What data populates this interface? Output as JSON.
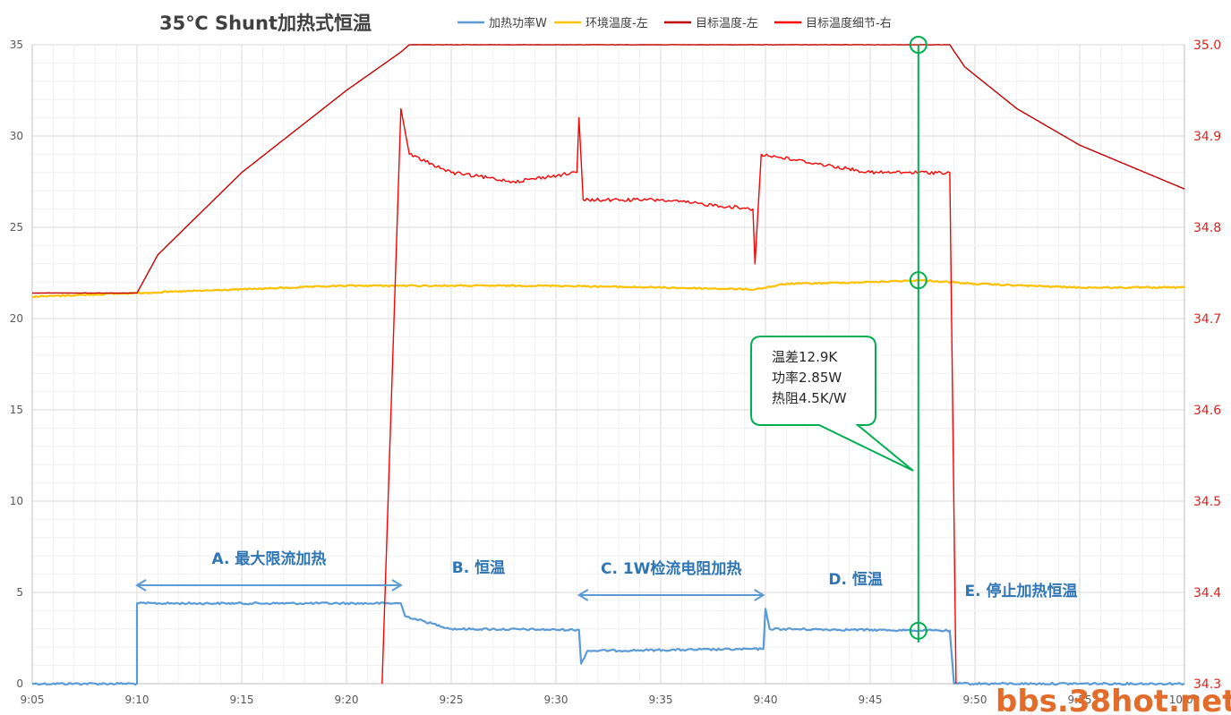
{
  "chart_data": {
    "type": "line",
    "title": "35℃ Shunt加热式恒温",
    "x_axis": {
      "ticks": [
        "9:05",
        "9:10",
        "9:15",
        "9:20",
        "9:25",
        "9:30",
        "9:35",
        "9:40",
        "9:45",
        "9:50",
        "9:55",
        "10:00"
      ],
      "range_minutes_from_9_05": [
        0,
        55
      ]
    },
    "y_left": {
      "ticks": [
        "0",
        "5",
        "10",
        "15",
        "20",
        "25",
        "30",
        "35"
      ],
      "range": [
        0,
        35
      ]
    },
    "y_right": {
      "ticks": [
        "34.3",
        "34.4",
        "34.5",
        "34.6",
        "34.7",
        "34.8",
        "34.9",
        "35.0"
      ],
      "range": [
        34.3,
        35.0
      ]
    },
    "grid": true,
    "legend_position": "top",
    "series": [
      {
        "name": "加热功率W",
        "axis": "left",
        "color": "#5b9bd5",
        "points": [
          [
            "9:05",
            0
          ],
          [
            "9:10",
            0
          ],
          [
            "9:10",
            4.4
          ],
          [
            "9:22.6",
            4.4
          ],
          [
            "9:22.8",
            3.7
          ],
          [
            "9:25",
            3.0
          ],
          [
            "9:31.1",
            2.95
          ],
          [
            "9:31.2",
            1.1
          ],
          [
            "9:31.5",
            1.8
          ],
          [
            "9:39.9",
            1.9
          ],
          [
            "9:40",
            4.1
          ],
          [
            "9:40.2",
            3.0
          ],
          [
            "9:48.8",
            2.9
          ],
          [
            "9:49",
            0
          ],
          [
            "10:00",
            0
          ]
        ]
      },
      {
        "name": "环境温度-左",
        "axis": "left",
        "color": "#ffc000",
        "points": [
          [
            "9:05",
            21.2
          ],
          [
            "9:10",
            21.4
          ],
          [
            "9:15",
            21.6
          ],
          [
            "9:20",
            21.8
          ],
          [
            "9:25",
            21.8
          ],
          [
            "9:30",
            21.8
          ],
          [
            "9:35",
            21.7
          ],
          [
            "9:39.5",
            21.6
          ],
          [
            "9:41",
            21.9
          ],
          [
            "9:45",
            22.0
          ],
          [
            "9:47.5",
            22.1
          ],
          [
            "9:50",
            21.9
          ],
          [
            "9:55",
            21.7
          ],
          [
            "10:00",
            21.7
          ]
        ]
      },
      {
        "name": "目标温度-左",
        "axis": "left",
        "color": "#c00000",
        "points": [
          [
            "9:05",
            21.4
          ],
          [
            "9:10",
            21.4
          ],
          [
            "9:11",
            23.5
          ],
          [
            "9:15",
            28.0
          ],
          [
            "9:20",
            32.5
          ],
          [
            "9:22.6",
            34.6
          ],
          [
            "9:23",
            35.0
          ],
          [
            "9:48.8",
            35.0
          ],
          [
            "9:49.5",
            33.8
          ],
          [
            "9:52",
            31.5
          ],
          [
            "9:55",
            29.5
          ],
          [
            "10:00",
            27.1
          ]
        ]
      },
      {
        "name": "目标温度细节-右",
        "axis": "right",
        "color": "#ff0000",
        "points": [
          [
            "9:21.7",
            34.3
          ],
          [
            "9:22.6",
            34.93
          ],
          [
            "9:23",
            34.88
          ],
          [
            "9:25",
            34.86
          ],
          [
            "9:28",
            34.85
          ],
          [
            "9:31",
            34.86
          ],
          [
            "9:31.1",
            34.92
          ],
          [
            "9:31.3",
            34.83
          ],
          [
            "9:35",
            34.83
          ],
          [
            "9:39.4",
            34.82
          ],
          [
            "9:39.5",
            34.76
          ],
          [
            "9:39.8",
            34.88
          ],
          [
            "9:45",
            34.86
          ],
          [
            "9:48.8",
            34.86
          ],
          [
            "9:49.1",
            34.3
          ]
        ]
      }
    ],
    "annotations": {
      "phases": [
        "A. 最大限流加热",
        "B. 恒温",
        "C. 1W检流电阻加热",
        "D. 恒温",
        "E. 停止加热恒温"
      ],
      "callout_lines": [
        "温差12.9K",
        "功率2.85W",
        "热阻4.5K/W"
      ],
      "marker_time": "9:47.3"
    }
  },
  "watermark": "bbs.38hot.net"
}
